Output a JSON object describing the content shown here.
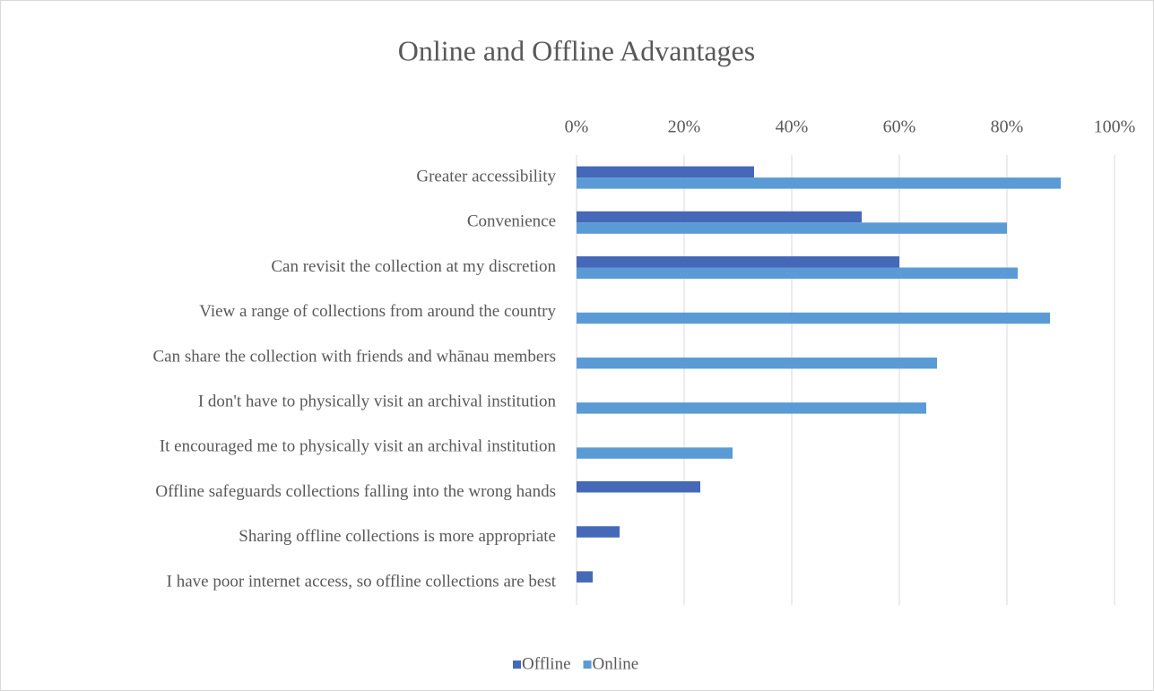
{
  "chart_data": {
    "type": "bar",
    "orientation": "horizontal",
    "title": "Online and Offline Advantages",
    "categories": [
      "Greater accessibility",
      "Convenience",
      "Can revisit the collection at my discretion",
      "View a range of collections from around the country",
      "Can share the collection with friends and whānau members",
      "I don't have to physically visit an archival institution",
      "It encouraged me to physically visit an archival institution",
      "Offline safeguards collections falling into the wrong hands",
      "Sharing offline collections is more appropriate",
      "I have poor internet access, so offline collections are best"
    ],
    "series": [
      {
        "name": "Offline",
        "color": "#4568b8",
        "values": [
          33,
          53,
          60,
          null,
          null,
          null,
          null,
          23,
          8,
          3
        ]
      },
      {
        "name": "Online",
        "color": "#5b9bd5",
        "values": [
          90,
          80,
          82,
          88,
          67,
          65,
          29,
          null,
          null,
          null
        ]
      }
    ],
    "xlim": [
      0,
      100
    ],
    "xticks": [
      {
        "value": 0,
        "label": "0%"
      },
      {
        "value": 20,
        "label": "20%"
      },
      {
        "value": 40,
        "label": "40%"
      },
      {
        "value": 60,
        "label": "60%"
      },
      {
        "value": 80,
        "label": "80%"
      },
      {
        "value": 100,
        "label": "100%"
      }
    ],
    "grid": true,
    "legend": "bottom"
  }
}
